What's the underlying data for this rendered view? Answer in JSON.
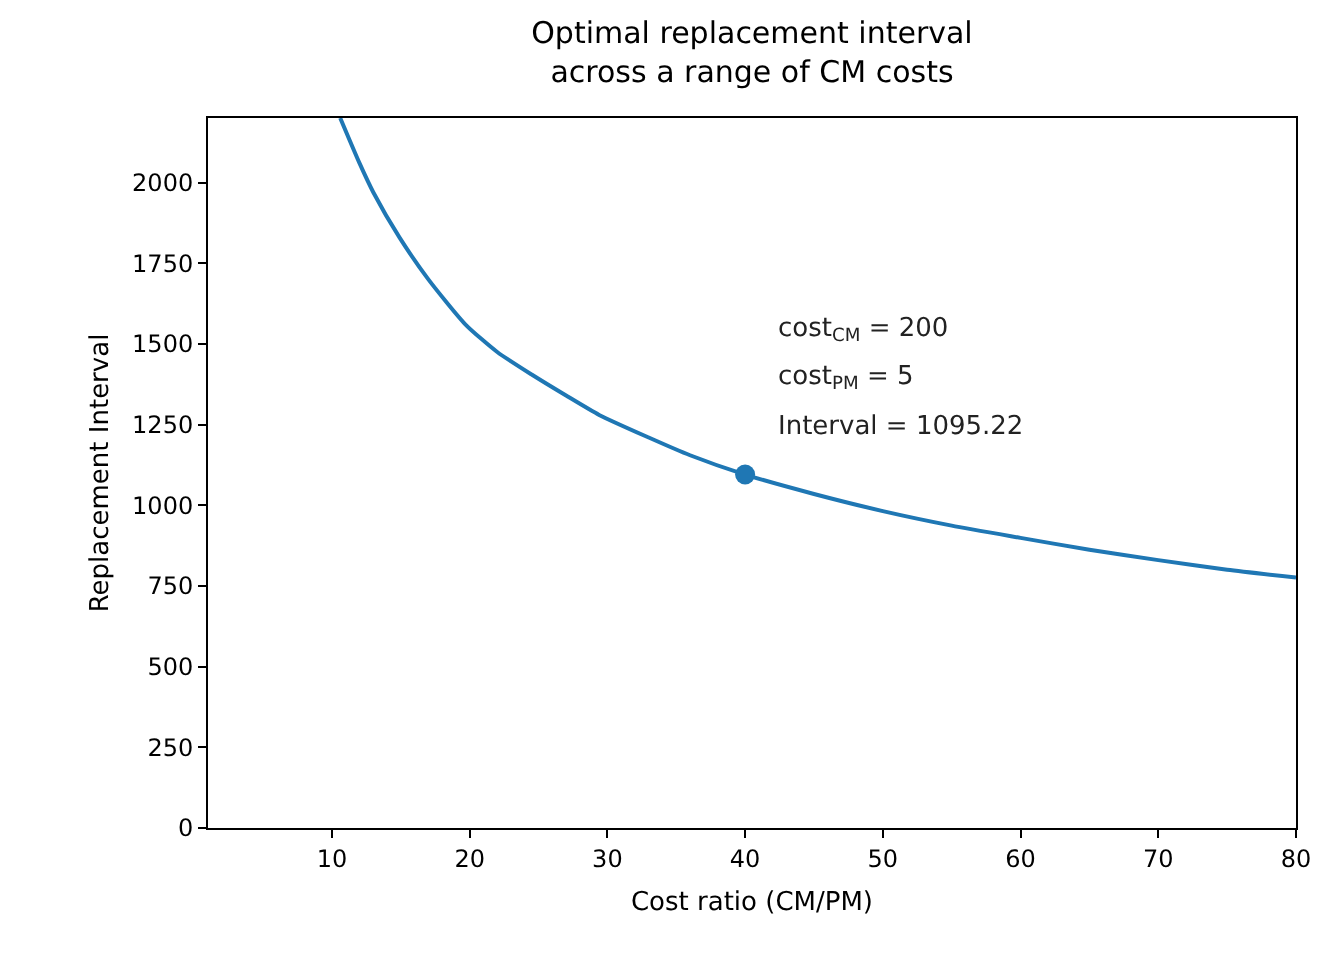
{
  "chart_data": {
    "type": "line",
    "title": "Optimal replacement interval\nacross a range of CM costs",
    "xlabel": "Cost ratio (CM/PM)",
    "ylabel": "Replacement Interval",
    "xlim": [
      1,
      80
    ],
    "xticks": [
      10,
      20,
      30,
      40,
      50,
      60,
      70,
      80
    ],
    "ylim": [
      0,
      2200
    ],
    "yticks": [
      0,
      250,
      500,
      750,
      1000,
      1250,
      1500,
      1750,
      2000
    ],
    "grid": false,
    "series": [
      {
        "type": "line",
        "color": "#1f77b4",
        "x": [
          10.6,
          12,
          13,
          14.9,
          17,
          19.7,
          22,
          24.5,
          27,
          29.4,
          33,
          36,
          40,
          45,
          50,
          55,
          60,
          65,
          70,
          75,
          80
        ],
        "values": [
          2200,
          2060,
          1970,
          1830,
          1700,
          1560,
          1475,
          1405,
          1340,
          1280,
          1210,
          1155,
          1095,
          1035,
          982,
          937,
          899,
          862,
          830,
          800,
          776
        ]
      },
      {
        "type": "scatter",
        "marker": "circle",
        "color": "#1f77b4",
        "x": [
          40
        ],
        "values": [
          1095.22
        ]
      }
    ],
    "annotations": [
      "cost$_{CM}$ = 200",
      "cost$_{PM}$ = 5",
      "Interval = 1095.22"
    ]
  }
}
